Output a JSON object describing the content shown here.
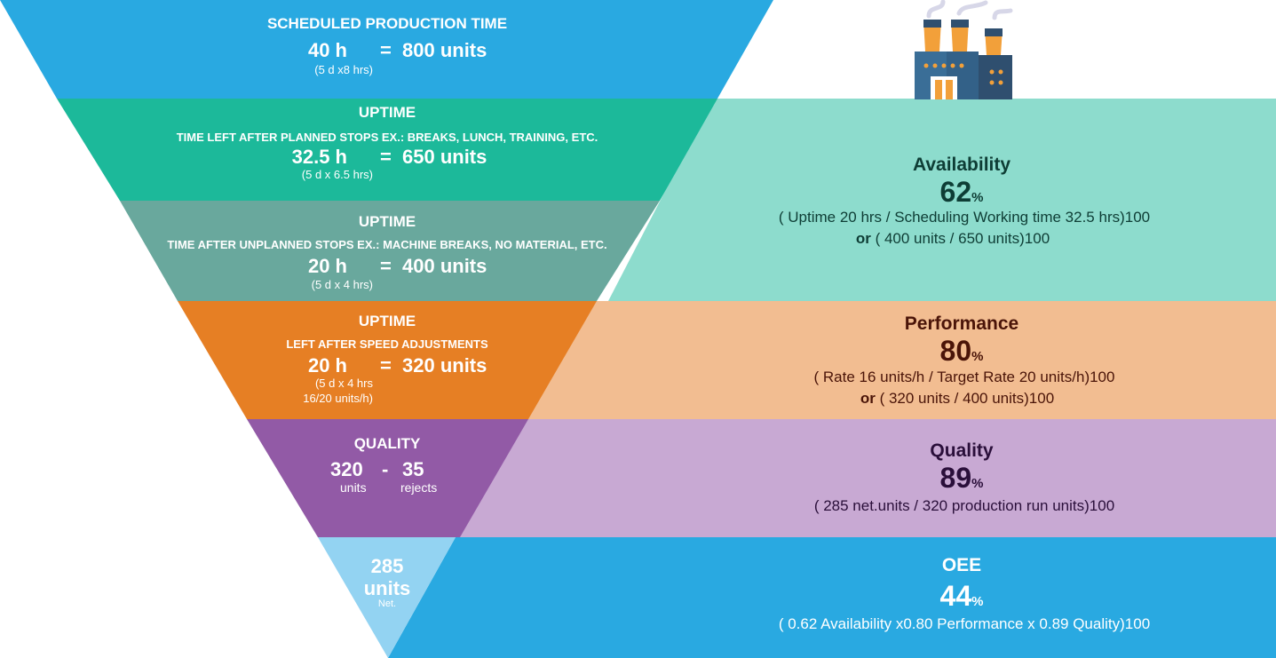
{
  "colors": {
    "scheduled": "#29a9e1",
    "uptime_planned": "#1cb99a",
    "uptime_unplanned": "#69a89d",
    "uptime_speed": "#e67f24",
    "quality": "#925aa6",
    "net": "#93d3f2",
    "availability_panel": "#8ddccd",
    "performance_panel": "#f2bd91",
    "quality_panel": "#c8a9d3",
    "oee_panel": "#29a9e1"
  },
  "funnel": {
    "scheduled": {
      "title": "SCHEDULED PRODUCTION TIME",
      "hours": "40 h",
      "equals": "=",
      "units": "800 units",
      "note": "(5 d x8 hrs)"
    },
    "uptime_planned": {
      "title": "UPTIME",
      "subtitle": "TIME LEFT AFTER PLANNED STOPS EX.: BREAKS, LUNCH, TRAINING, ETC.",
      "hours": "32.5 h",
      "equals": "=",
      "units": "650 units",
      "note": "(5 d x 6.5 hrs)"
    },
    "uptime_unplanned": {
      "title": "UPTIME",
      "subtitle": "TIME AFTER UNPLANNED STOPS EX.: MACHINE  BREAKS, NO MATERIAL, ETC.",
      "hours": "20 h",
      "equals": "=",
      "units": "400 units",
      "note": "(5 d x 4 hrs)"
    },
    "uptime_speed": {
      "title": "UPTIME",
      "subtitle": "LEFT AFTER SPEED ADJUSTMENTS",
      "hours": "20 h",
      "equals": "=",
      "units": "320 units",
      "note_line1": "(5 d x 4 hrs",
      "note_line2": "16/20 units/h)"
    },
    "quality": {
      "title": "QUALITY",
      "left_value": "320",
      "minus": "-",
      "right_value": "35",
      "left_label": "units",
      "right_label": "rejects"
    },
    "net": {
      "value": "285",
      "label": "units",
      "suffix": "Net."
    }
  },
  "kpis": {
    "availability": {
      "title": "Availability",
      "value": "62",
      "unit": "%",
      "formula1": "( Uptime 20 hrs / Scheduling Working time 32.5 hrs)100",
      "or": "or",
      "formula2": " ( 400 units / 650 units)100"
    },
    "performance": {
      "title": "Performance",
      "value": "80",
      "unit": "%",
      "formula1": "( Rate 16 units/h / Target Rate 20 units/h)100",
      "or": "or",
      "formula2": " ( 320 units / 400 units)100"
    },
    "quality": {
      "title": "Quality",
      "value": "89",
      "unit": "%",
      "formula1": "( 285 net.units / 320 production run units)100"
    },
    "oee": {
      "title": "OEE",
      "value": "44",
      "unit": "%",
      "formula1": "( 0.62 Availability x0.80 Performance x 0.89 Quality)100"
    }
  },
  "icons": {
    "factory": "factory-icon"
  }
}
